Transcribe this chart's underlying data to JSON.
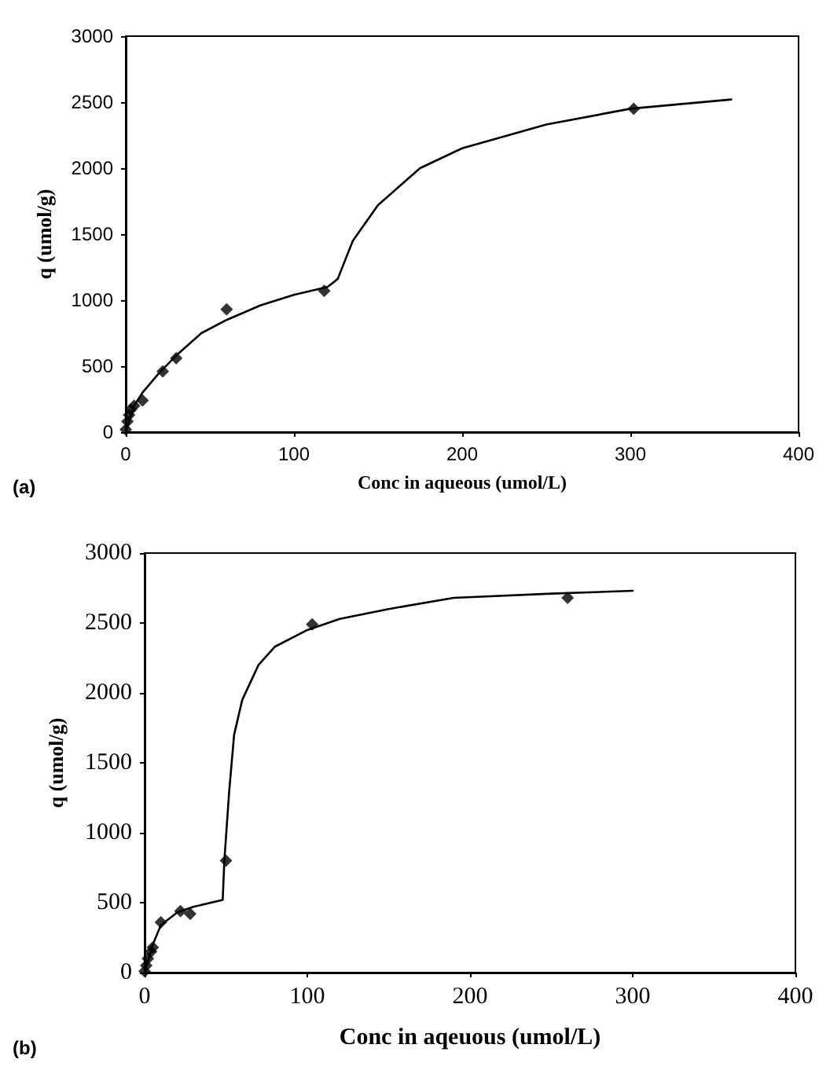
{
  "chart_data": [
    {
      "type": "scatter",
      "xlabel": "Conc in aqueous (umol/L)",
      "ylabel": "q (umol/g)",
      "annotations": [
        "(a)"
      ],
      "xlim": [
        0,
        400
      ],
      "xticks": [
        0,
        100,
        200,
        300,
        400
      ],
      "ylim": [
        0,
        3000
      ],
      "yticks": [
        0,
        500,
        1000,
        1500,
        2000,
        2500,
        3000
      ],
      "grid": false,
      "series": [
        {
          "type": "scatter",
          "color": "#000000",
          "marker": "diamond",
          "x": [
            0,
            1,
            2,
            3,
            5,
            10,
            22,
            30,
            60,
            118,
            302
          ],
          "values": [
            20,
            80,
            130,
            170,
            200,
            240,
            460,
            560,
            930,
            1070,
            2450
          ]
        },
        {
          "type": "line",
          "color": "#000000",
          "marker": "none",
          "line_style": "solid",
          "x": [
            0,
            5,
            10,
            20,
            30,
            45,
            60,
            80,
            100,
            120,
            126,
            135,
            150,
            175,
            200,
            250,
            300,
            360
          ],
          "values": [
            0,
            200,
            300,
            450,
            580,
            750,
            850,
            960,
            1040,
            1100,
            1160,
            1450,
            1720,
            2000,
            2150,
            2330,
            2450,
            2520
          ]
        }
      ]
    },
    {
      "type": "scatter",
      "xlabel": "Conc in aqeuous (umol/L)",
      "ylabel": "q (umol/g)",
      "annotations": [
        "(b)"
      ],
      "xlim": [
        0,
        400
      ],
      "xticks": [
        0,
        100,
        200,
        300,
        400
      ],
      "ylim": [
        0,
        3000
      ],
      "yticks": [
        0,
        500,
        1000,
        1500,
        2000,
        2500,
        3000
      ],
      "grid": false,
      "series": [
        {
          "type": "scatter",
          "color": "#000000",
          "marker": "diamond",
          "x": [
            0,
            1,
            2,
            4,
            5,
            10,
            22,
            28,
            50,
            103,
            260
          ],
          "values": [
            10,
            50,
            100,
            150,
            180,
            360,
            440,
            420,
            800,
            2490,
            2680
          ]
        },
        {
          "type": "line",
          "color": "#000000",
          "marker": "none",
          "line_style": "solid",
          "x": [
            0,
            5,
            10,
            20,
            30,
            48,
            49,
            52,
            55,
            60,
            70,
            80,
            100,
            120,
            150,
            190,
            250,
            300
          ],
          "values": [
            0,
            200,
            340,
            430,
            470,
            520,
            800,
            1300,
            1700,
            1950,
            2200,
            2330,
            2450,
            2530,
            2600,
            2680,
            2710,
            2730
          ]
        }
      ]
    }
  ]
}
